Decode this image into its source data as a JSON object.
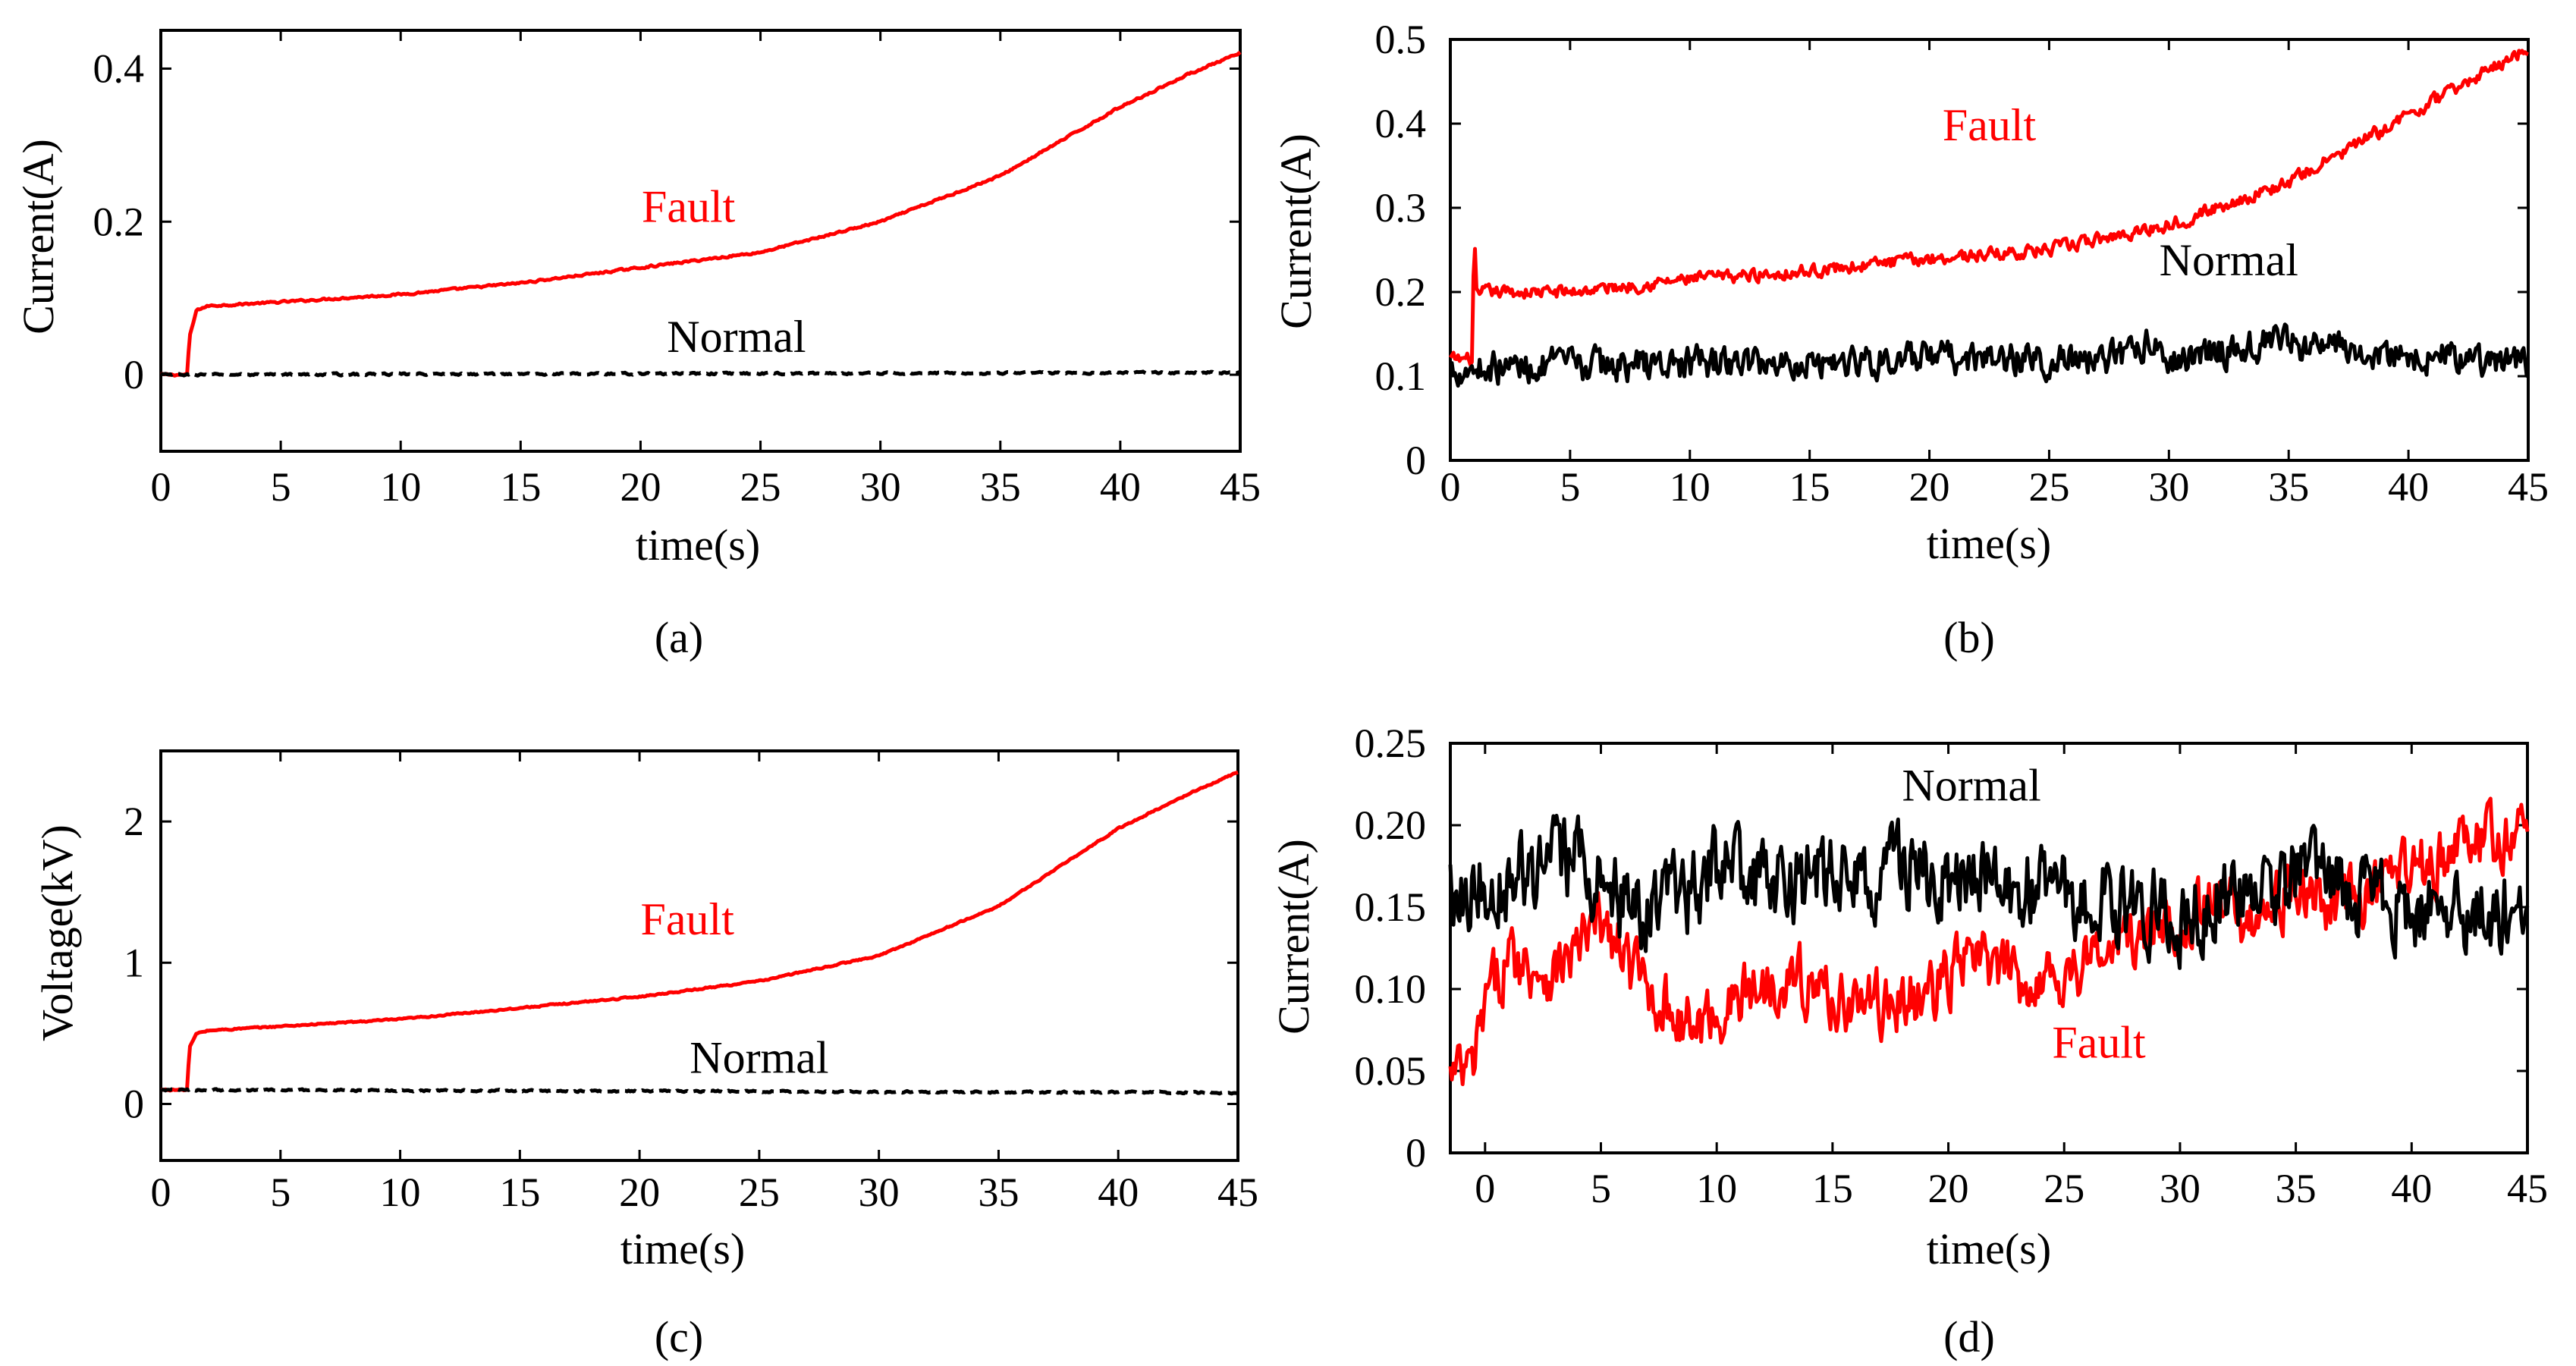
{
  "colors": {
    "fault": "#ff0000",
    "normal": "#000000",
    "axis": "#000000"
  },
  "chart_data": [
    {
      "type": "line",
      "panel_label": "(a)",
      "xlabel": "time(s)",
      "ylabel": "Current(A)",
      "xlim": [
        0,
        45
      ],
      "ylim": [
        -0.1,
        0.45
      ],
      "xticks": [
        0,
        5,
        10,
        15,
        20,
        25,
        30,
        35,
        40,
        45
      ],
      "xtick_labels": [
        "0",
        "5",
        "10",
        "15",
        "20",
        "25",
        "30",
        "35",
        "40",
        "45"
      ],
      "yticks": [
        0,
        0.2,
        0.4
      ],
      "ytick_labels": [
        "0",
        "0.2",
        "0.4"
      ],
      "annotations": [
        {
          "text": "Fault",
          "x": 22,
          "y": 0.2,
          "series": "Fault"
        },
        {
          "text": "Normal",
          "x": 24,
          "y": 0.03,
          "series": "Normal"
        }
      ],
      "series": [
        {
          "name": "Fault",
          "style": "solid",
          "x": [
            0,
            1.1,
            1.2,
            1.5,
            2,
            5,
            10,
            15,
            20,
            25,
            30,
            35,
            40,
            43,
            45
          ],
          "y": [
            0,
            0,
            0.05,
            0.085,
            0.09,
            0.095,
            0.105,
            0.12,
            0.14,
            0.16,
            0.2,
            0.26,
            0.35,
            0.395,
            0.42
          ],
          "noise": 0.002
        },
        {
          "name": "Normal",
          "style": "dashed",
          "x": [
            0,
            45
          ],
          "y": [
            0,
            0.003
          ],
          "noise": 0.002
        }
      ]
    },
    {
      "type": "line",
      "panel_label": "(b)",
      "xlabel": "time(s)",
      "ylabel": "Current(A)",
      "xlim": [
        0,
        45
      ],
      "ylim": [
        0,
        0.5
      ],
      "xticks": [
        0,
        5,
        10,
        15,
        20,
        25,
        30,
        35,
        40,
        45
      ],
      "xtick_labels": [
        "0",
        "5",
        "10",
        "15",
        "20",
        "25",
        "30",
        "35",
        "40",
        "45"
      ],
      "yticks": [
        0,
        0.1,
        0.2,
        0.3,
        0.4,
        0.5
      ],
      "ytick_labels": [
        "0",
        "0.1",
        "0.2",
        "0.3",
        "0.4",
        "0.5"
      ],
      "annotations": [
        {
          "text": "Fault",
          "x": 22.5,
          "y": 0.38,
          "series": "Fault"
        },
        {
          "text": "Normal",
          "x": 32.5,
          "y": 0.22,
          "series": "Normal"
        }
      ],
      "series": [
        {
          "name": "Fault",
          "style": "solid",
          "x": [
            0,
            0.9,
            1.0,
            1.1,
            1.4,
            5,
            10,
            15,
            20,
            25,
            30,
            35,
            40,
            45
          ],
          "y": [
            0.12,
            0.12,
            0.27,
            0.19,
            0.2,
            0.2,
            0.215,
            0.225,
            0.24,
            0.25,
            0.28,
            0.33,
            0.41,
            0.49
          ],
          "noise": 0.012
        },
        {
          "name": "Normal",
          "style": "solid",
          "x": [
            0,
            10,
            20,
            28,
            29,
            30,
            34,
            38,
            45
          ],
          "y": [
            0.11,
            0.115,
            0.12,
            0.12,
            0.14,
            0.12,
            0.14,
            0.13,
            0.115
          ],
          "noise": 0.03
        }
      ]
    },
    {
      "type": "line",
      "panel_label": "(c)",
      "xlabel": "time(s)",
      "ylabel": "Voltage(kV)",
      "xlim": [
        0,
        45
      ],
      "ylim": [
        -0.4,
        2.5
      ],
      "xticks": [
        0,
        5,
        10,
        15,
        20,
        25,
        30,
        35,
        40,
        45
      ],
      "xtick_labels": [
        "0",
        "5",
        "10",
        "15",
        "20",
        "25",
        "30",
        "35",
        "40",
        "45"
      ],
      "yticks": [
        0,
        1,
        2
      ],
      "ytick_labels": [
        "0",
        "1",
        "2"
      ],
      "annotations": [
        {
          "text": "Fault",
          "x": 22,
          "y": 1.2,
          "series": "Fault"
        },
        {
          "text": "Normal",
          "x": 25,
          "y": 0.22,
          "series": "Normal"
        }
      ],
      "series": [
        {
          "name": "Fault",
          "style": "solid",
          "x": [
            0,
            1.1,
            1.2,
            1.5,
            2,
            5,
            10,
            15,
            20,
            25,
            30,
            35,
            40,
            43,
            45
          ],
          "y": [
            0.1,
            0.1,
            0.4,
            0.5,
            0.52,
            0.55,
            0.6,
            0.68,
            0.76,
            0.87,
            1.05,
            1.4,
            1.95,
            2.2,
            2.35
          ],
          "noise": 0.008
        },
        {
          "name": "Normal",
          "style": "dashed",
          "x": [
            0,
            45
          ],
          "y": [
            0.1,
            0.08
          ],
          "noise": 0.01
        }
      ]
    },
    {
      "type": "line",
      "panel_label": "(d)",
      "xlabel": "time(s)",
      "ylabel": "Current(A)",
      "xlim": [
        -1.5,
        45
      ],
      "ylim": [
        0,
        0.25
      ],
      "xticks": [
        0,
        5,
        10,
        15,
        20,
        25,
        30,
        35,
        40,
        45
      ],
      "xtick_labels": [
        "0",
        "5",
        "10",
        "15",
        "20",
        "25",
        "30",
        "35",
        "40",
        "45"
      ],
      "yticks": [
        0,
        0.05,
        0.1,
        0.15,
        0.2,
        0.25
      ],
      "ytick_labels": [
        "0",
        "0.05",
        "0.10",
        "0.15",
        "0.20",
        "0.25"
      ],
      "annotations": [
        {
          "text": "Normal",
          "x": 21,
          "y": 0.215,
          "series": "Normal"
        },
        {
          "text": "Fault",
          "x": 26.5,
          "y": 0.058,
          "series": "Fault"
        }
      ],
      "series": [
        {
          "name": "Fault",
          "style": "solid",
          "x": [
            -1.5,
            -0.5,
            0,
            1,
            3,
            5,
            7,
            9,
            11,
            13,
            15,
            17,
            19,
            21,
            23,
            25,
            27,
            29,
            31,
            33,
            35,
            37,
            39,
            41,
            43,
            45
          ],
          "y": [
            0.045,
            0.05,
            0.09,
            0.12,
            0.11,
            0.14,
            0.1,
            0.075,
            0.095,
            0.11,
            0.095,
            0.09,
            0.095,
            0.12,
            0.105,
            0.11,
            0.125,
            0.135,
            0.15,
            0.145,
            0.16,
            0.15,
            0.165,
            0.18,
            0.19,
            0.195
          ],
          "noise": 0.03
        },
        {
          "name": "Normal",
          "style": "solid",
          "x": [
            -1.5,
            0,
            2,
            4,
            6,
            8,
            10,
            12,
            14,
            16,
            18,
            20,
            22,
            24,
            26,
            28,
            30,
            32,
            34,
            36,
            38,
            40,
            42,
            45
          ],
          "y": [
            0.165,
            0.165,
            0.17,
            0.18,
            0.15,
            0.15,
            0.175,
            0.16,
            0.17,
            0.165,
            0.175,
            0.16,
            0.165,
            0.16,
            0.155,
            0.15,
            0.145,
            0.16,
            0.165,
            0.17,
            0.155,
            0.15,
            0.145,
            0.15
          ],
          "noise": 0.04
        }
      ]
    }
  ]
}
